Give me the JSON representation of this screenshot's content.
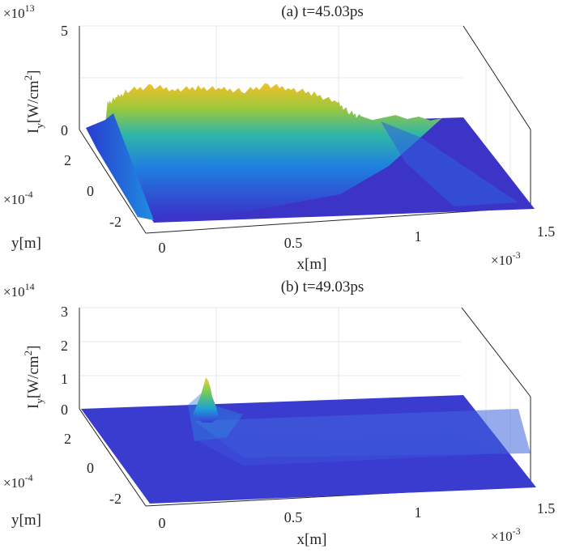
{
  "chart_data": [
    {
      "type": "surface",
      "title": "(a) t=45.03ps",
      "xlabel": "x[m]",
      "ylabel": "y[m]",
      "zlabel_main": "I",
      "zlabel_sub": "y",
      "zlabel_unit": "[W/cm",
      "zlabel_unit_sup": "2",
      "zlabel_close": "]",
      "x_ticks": [
        "0",
        "0.5",
        "1",
        "1.5"
      ],
      "y_ticks": [
        "2",
        "0",
        "-2"
      ],
      "z_ticks": [
        "0",
        "5"
      ],
      "x_exponent_base": "×10",
      "x_exponent": "-3",
      "y_exponent_base": "×10",
      "y_exponent": "-4",
      "z_exponent_base": "×10",
      "z_exponent": "13",
      "xlim": [
        0,
        0.0015
      ],
      "ylim": [
        -0.0003,
        0.0003
      ],
      "zlim": [
        0,
        50000000000000.0
      ],
      "colormap": "parula",
      "intensity_profile_along_x": {
        "x": [
          1e-05,
          5e-05,
          0.0001,
          0.0002,
          0.0003,
          0.0004,
          0.0005,
          0.0006,
          0.0007,
          0.0008,
          0.0009,
          0.001,
          0.00105,
          0.0011,
          0.0015
        ],
        "z_peak": [
          10000000000000.0,
          13000000000000.0,
          17000000000000.0,
          19000000000000.0,
          17000000000000.0,
          18000000000000.0,
          17000000000000.0,
          16000000000000.0,
          19000000000000.0,
          17000000000000.0,
          14000000000000.0,
          9000000000000.0,
          4000000000000.0,
          1000000000000.0,
          0.0
        ]
      }
    },
    {
      "type": "surface",
      "title": "(b) t=49.03ps",
      "xlabel": "x[m]",
      "ylabel": "y[m]",
      "zlabel_main": "I",
      "zlabel_sub": "y",
      "zlabel_unit": "[W/cm",
      "zlabel_unit_sup": "2",
      "zlabel_close": "]",
      "x_ticks": [
        "0",
        "0.5",
        "1",
        "1.5"
      ],
      "y_ticks": [
        "2",
        "0",
        "-2"
      ],
      "z_ticks": [
        "0",
        "1",
        "2",
        "3"
      ],
      "x_exponent_base": "×10",
      "x_exponent": "-3",
      "y_exponent_base": "×10",
      "y_exponent": "-4",
      "z_exponent_base": "×10",
      "z_exponent": "14",
      "xlim": [
        0,
        0.0015
      ],
      "ylim": [
        -0.0003,
        0.0003
      ],
      "zlim": [
        0,
        300000000000000.0
      ],
      "colormap": "parula",
      "peak": {
        "x": 0.00022,
        "y": 0.00018,
        "z": 100000000000000.0
      }
    }
  ]
}
